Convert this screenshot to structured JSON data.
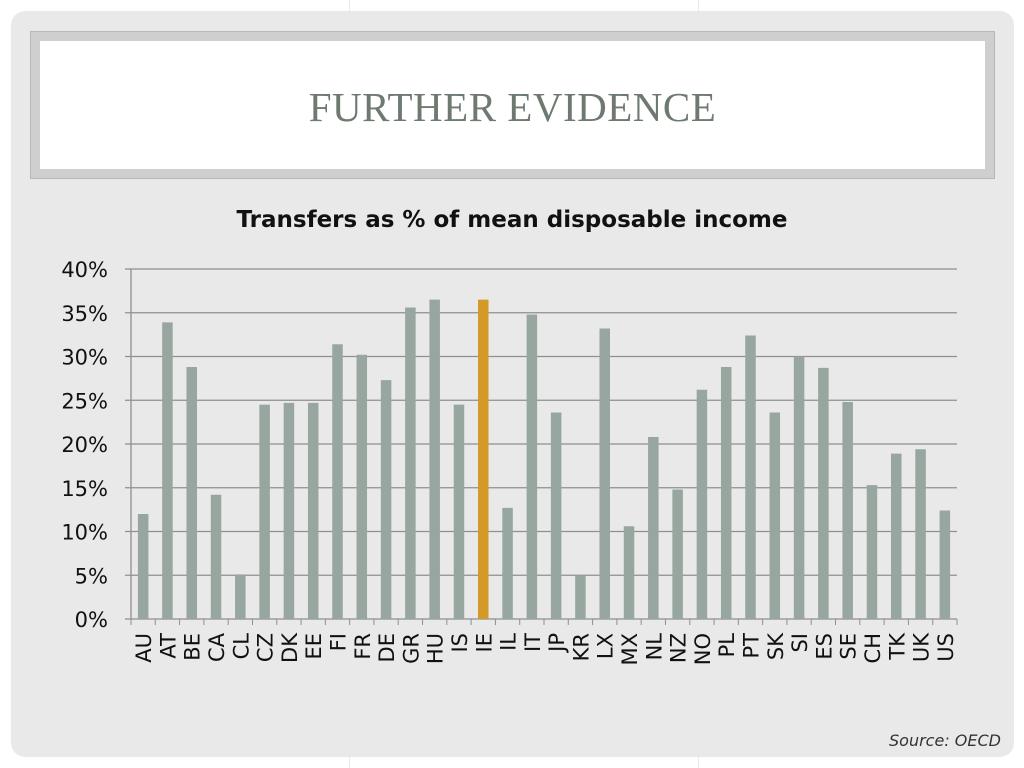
{
  "slide": {
    "title": "FURTHER EVIDENCE",
    "source": "Source: OECD"
  },
  "colors": {
    "bar": "#97a69f",
    "highlight": "#d39a27",
    "grid": "#8f8f8f"
  },
  "chart_data": {
    "type": "bar",
    "title": "Transfers as % of mean disposable income",
    "xlabel": "",
    "ylabel": "",
    "ylim": [
      0,
      40
    ],
    "yticks": [
      "0%",
      "5%",
      "10%",
      "15%",
      "20%",
      "25%",
      "30%",
      "35%",
      "40%"
    ],
    "grid": true,
    "highlight": "IE",
    "categories": [
      "AU",
      "AT",
      "BE",
      "CA",
      "CL",
      "CZ",
      "DK",
      "EE",
      "FI",
      "FR",
      "DE",
      "GR",
      "HU",
      "IS",
      "IE",
      "IL",
      "IT",
      "JP",
      "KR",
      "LX",
      "MX",
      "NL",
      "NZ",
      "NO",
      "PL",
      "PT",
      "SK",
      "SI",
      "ES",
      "SE",
      "CH",
      "TK",
      "UK",
      "US"
    ],
    "values": [
      12.0,
      33.9,
      28.8,
      14.2,
      5.1,
      24.5,
      24.7,
      24.7,
      31.4,
      30.2,
      27.3,
      35.6,
      36.5,
      24.5,
      36.5,
      12.7,
      34.8,
      23.6,
      5.0,
      33.2,
      10.6,
      20.8,
      14.8,
      26.2,
      28.8,
      32.4,
      23.6,
      30.0,
      28.7,
      24.8,
      15.3,
      18.9,
      19.4,
      12.4
    ]
  }
}
